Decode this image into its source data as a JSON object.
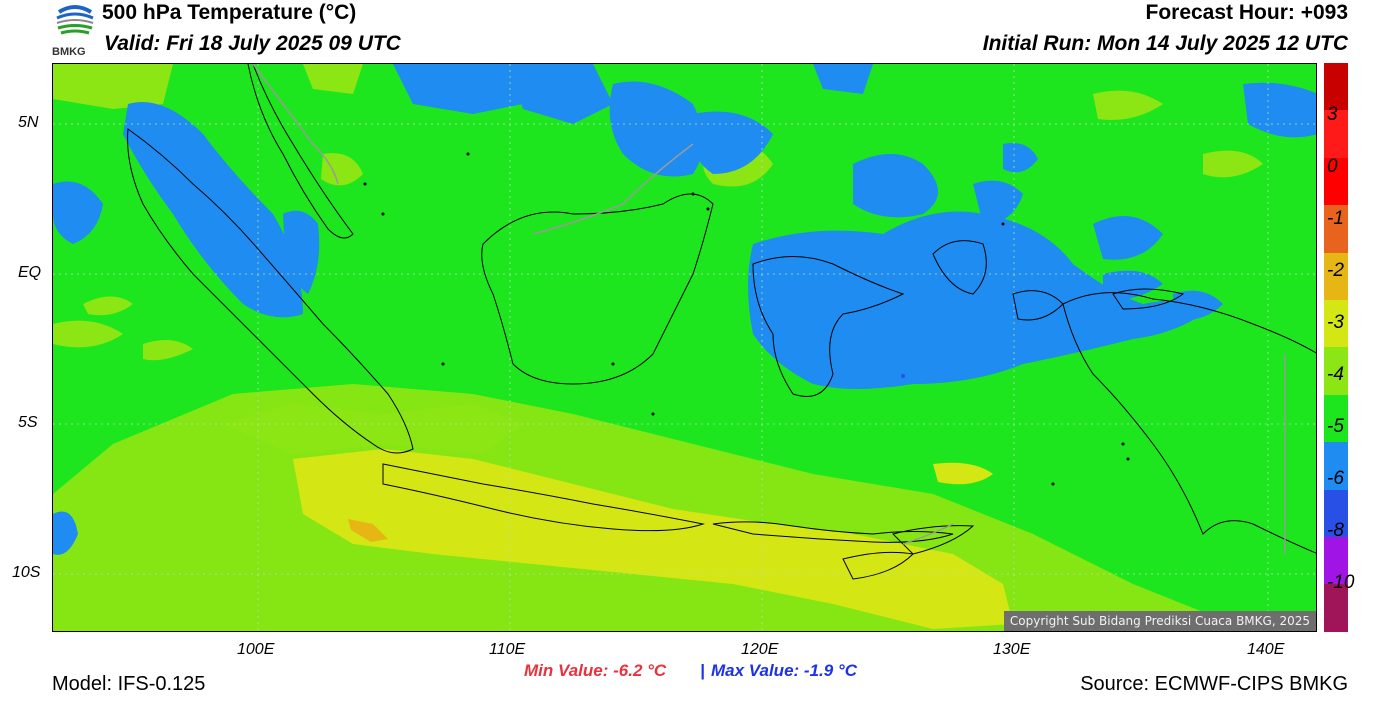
{
  "header": {
    "title": "500 hPa Temperature (°C)",
    "valid": "Valid: Fri 18 July 2025 09 UTC",
    "forecast_hour": "Forecast Hour: +093",
    "initial_run": "Initial Run: Mon 14 July 2025 12 UTC",
    "logo_text": "BMKG"
  },
  "map": {
    "lat_labels": [
      "5N",
      "EQ",
      "5S",
      "10S"
    ],
    "lon_labels": [
      "100E",
      "110E",
      "120E",
      "130E",
      "140E"
    ],
    "copyright": "Copyright Sub Bidang Prediksi Cuaca BMKG, 2025"
  },
  "colorbar": {
    "labels": [
      "3",
      "0",
      "-1",
      "-2",
      "-3",
      "-4",
      "-5",
      "-6",
      "-8",
      "-10"
    ],
    "colors": [
      "#c80000",
      "#ff1a1a",
      "#ff0000",
      "#e8641e",
      "#e6b614",
      "#d4e614",
      "#8ce614",
      "#1ee61e",
      "#1e8cf0",
      "#2850e6",
      "#a014e6",
      "#a0145a"
    ]
  },
  "stats": {
    "min": "Min Value: -6.2 °C",
    "sep": "|",
    "max": "Max Value: -1.9 °C",
    "min_color": "#e8323c",
    "max_color": "#1e32e6"
  },
  "footer": {
    "model": "Model: IFS-0.125",
    "source": "Source: ECMWF-CIPS BMKG"
  }
}
